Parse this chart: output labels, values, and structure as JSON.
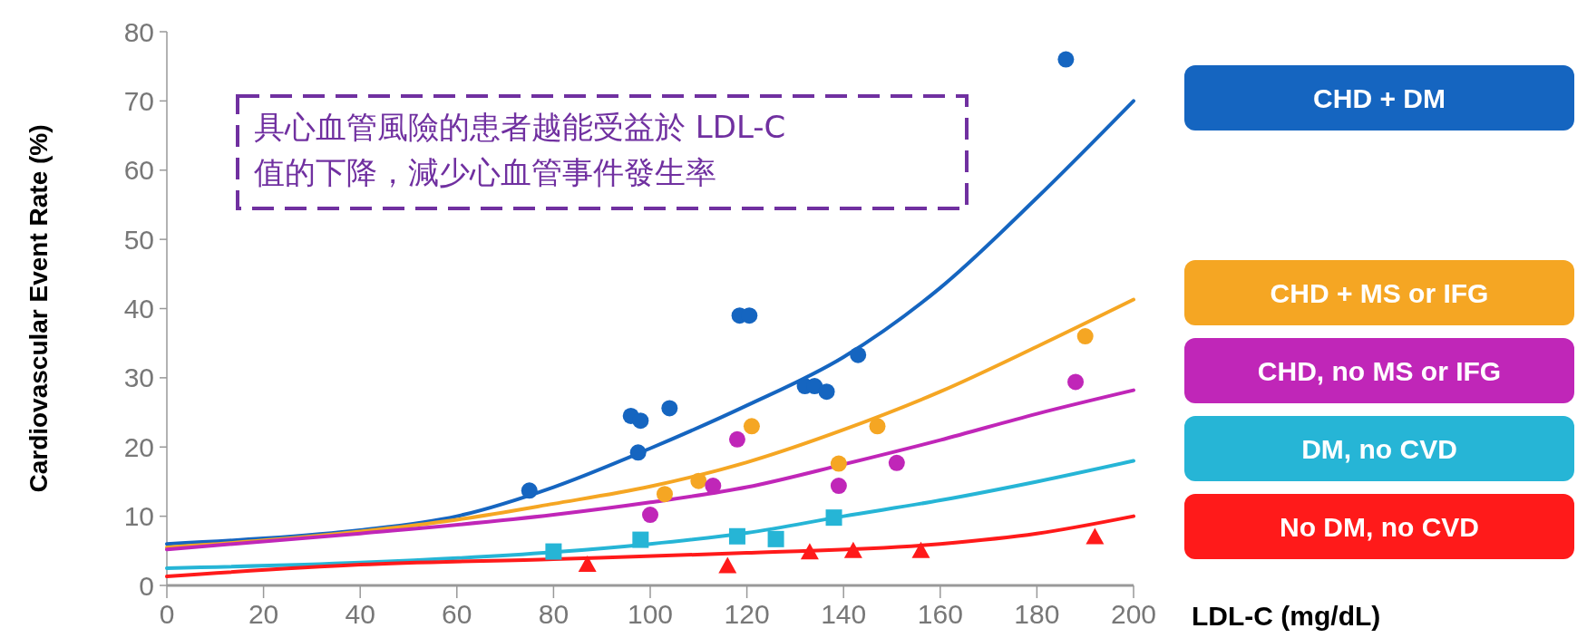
{
  "chart_data": {
    "type": "scatter",
    "xlabel": "LDL-C (mg/dL)",
    "ylabel": "Cardiovascular Event Rate (%)",
    "xlim": [
      0,
      200
    ],
    "ylim": [
      0,
      80
    ],
    "xticks": [
      0,
      20,
      40,
      60,
      80,
      100,
      120,
      140,
      160,
      180,
      200
    ],
    "yticks": [
      0,
      10,
      20,
      30,
      40,
      50,
      60,
      70,
      80
    ],
    "grid": false,
    "legend": "right",
    "annotations": [
      "具心血管風險的患者越能受益於  LDL-C\n值的下降，減少心血管事件發生率"
    ],
    "series": [
      {
        "name": "CHD + DM",
        "color": "#1565c0",
        "marker": "circle",
        "x": [
          75,
          96,
          97.5,
          98,
          104,
          118.5,
          120.5,
          132,
          134,
          136.5,
          143,
          186
        ],
        "values": [
          13.7,
          24.5,
          19.2,
          23.8,
          25.6,
          39,
          39,
          28.8,
          28.8,
          28,
          33.3,
          76
        ]
      },
      {
        "name": "CHD + MS or IFG",
        "color": "#f5a623",
        "marker": "circle",
        "x": [
          103,
          110,
          121,
          139,
          147,
          190
        ],
        "values": [
          13.2,
          15.1,
          23,
          17.6,
          23,
          36
        ]
      },
      {
        "name": "CHD, no MS or IFG",
        "color": "#c026b8",
        "marker": "circle",
        "x": [
          100,
          113,
          118,
          139,
          151,
          188
        ],
        "values": [
          10.2,
          14.4,
          21.1,
          14.4,
          17.7,
          29.4
        ]
      },
      {
        "name": "DM, no CVD",
        "color": "#26b5d6",
        "marker": "square",
        "x": [
          80,
          98,
          118,
          126,
          138
        ],
        "values": [
          4.9,
          6.6,
          7.1,
          6.7,
          9.8
        ]
      },
      {
        "name": "No DM, no CVD",
        "color": "#ff1a1a",
        "marker": "triangle",
        "x": [
          87,
          116,
          133,
          142,
          156,
          192
        ],
        "values": [
          3,
          2.8,
          4.8,
          5,
          5,
          7
        ]
      },
      {
        "type": "line",
        "color": "#1565c0",
        "x": [
          0,
          20,
          40,
          60,
          80,
          100,
          120,
          140,
          160,
          180,
          200
        ],
        "values": [
          6,
          6.8,
          8,
          10,
          14.2,
          19.8,
          26,
          33,
          43,
          56,
          70
        ]
      },
      {
        "type": "line",
        "color": "#f5a623",
        "x": [
          0,
          20,
          40,
          60,
          80,
          100,
          120,
          140,
          160,
          180,
          200
        ],
        "values": [
          5.5,
          6.5,
          7.8,
          9.5,
          11.8,
          14.3,
          17.8,
          22.5,
          28,
          34.5,
          41.3
        ]
      },
      {
        "type": "line",
        "color": "#c026b8",
        "x": [
          0,
          40,
          80,
          100,
          120,
          140,
          160,
          180,
          200
        ],
        "values": [
          5.2,
          7.5,
          10.2,
          12,
          14.2,
          17.5,
          21,
          24.8,
          28.2
        ]
      },
      {
        "type": "line",
        "color": "#26b5d6",
        "x": [
          0,
          40,
          80,
          100,
          120,
          140,
          160,
          180,
          200
        ],
        "values": [
          2.5,
          3.3,
          4.8,
          6,
          7.6,
          10,
          12.3,
          15,
          18
        ]
      },
      {
        "type": "line",
        "color": "#ff1a1a",
        "x": [
          0,
          40,
          80,
          120,
          160,
          180,
          200
        ],
        "values": [
          1.3,
          3,
          3.8,
          4.7,
          6,
          7.5,
          10
        ]
      }
    ]
  }
}
